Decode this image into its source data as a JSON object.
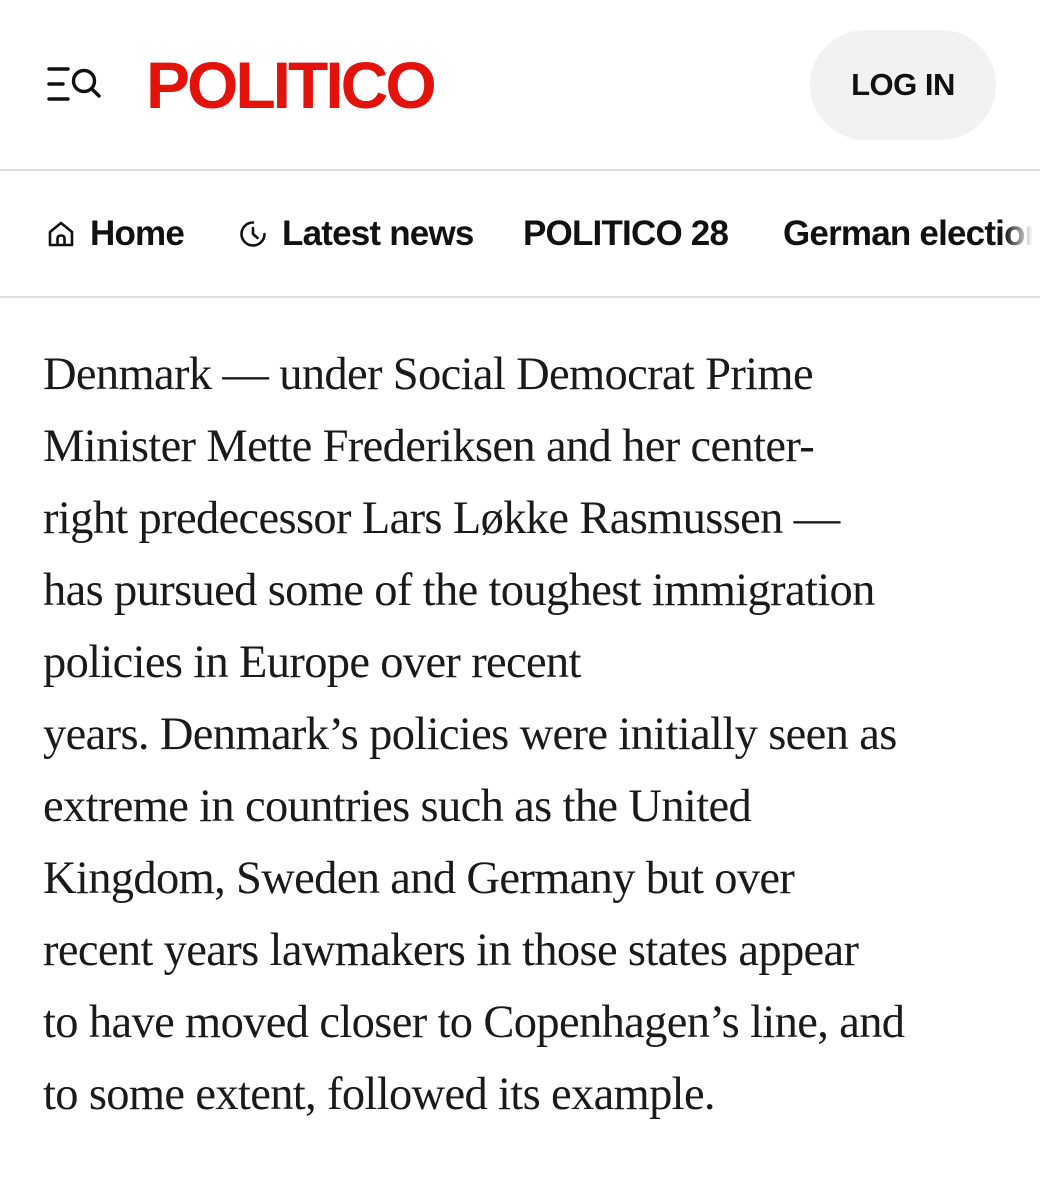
{
  "header": {
    "logo_text": "POLITICO",
    "login_label": "LOG IN",
    "menu_icon": "menu-search-icon",
    "brand_color": "#e3120b"
  },
  "nav": {
    "items": [
      {
        "label": "Home",
        "icon": "home-icon"
      },
      {
        "label": "Latest news",
        "icon": "clock-icon"
      },
      {
        "label": "POLITICO 28",
        "icon": ""
      },
      {
        "label": "German election",
        "icon": ""
      }
    ]
  },
  "article": {
    "lines": [
      "Denmark — under Social Democrat Prime",
      "Minister Mette Frederiksen and her center-",
      "right predecessor Lars Løkke Rasmussen —",
      "has pursued some of the toughest immigration",
      "policies in Europe over recent",
      "years. Denmark’s policies were initially seen as",
      "extreme in countries such as the United",
      "Kingdom, Sweden and Germany but over",
      "recent years lawmakers in those states appear",
      "to have moved closer to Copenhagen’s line, and",
      "to some extent, followed  its example."
    ]
  }
}
